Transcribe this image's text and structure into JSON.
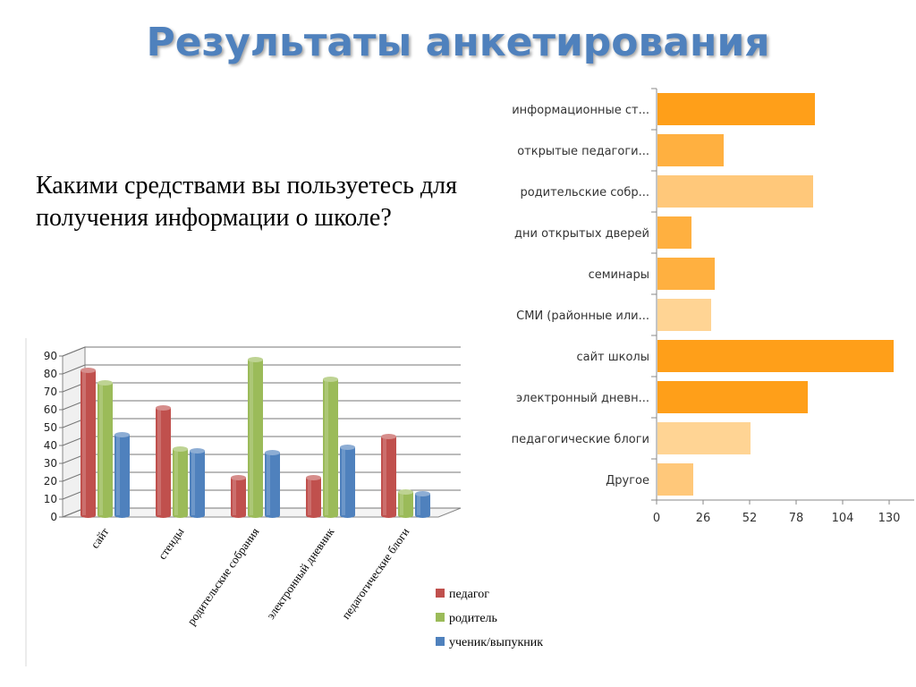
{
  "page": {
    "title": "Результаты анкетирования",
    "question": "Какими средствами вы пользуетесь для получения информации о школе?"
  },
  "chart_data": [
    {
      "type": "bar",
      "orientation": "horizontal",
      "categories": [
        "информационные ст...",
        "открытые педагоги...",
        "родительские собр...",
        "дни открытых дверей",
        "семинары",
        "СМИ (районные или...",
        "сайт школы",
        "электронный дневн...",
        "педагогические блоги",
        "Другое"
      ],
      "values": [
        88,
        37,
        87,
        19,
        32,
        30,
        132,
        84,
        52,
        20
      ],
      "colors": [
        "#ff9f19",
        "#ffb040",
        "#ffc87a",
        "#ffb040",
        "#ffb040",
        "#ffd494",
        "#ff9f19",
        "#ff9f19",
        "#ffd494",
        "#ffc87a"
      ],
      "xlim": [
        0,
        130
      ],
      "xticks": [
        0,
        26,
        52,
        78,
        104,
        130
      ]
    },
    {
      "type": "bar",
      "orientation": "vertical",
      "categories": [
        "сайт",
        "стенды",
        "родительские собрания",
        "электронный дневник",
        "педагогические блоги"
      ],
      "series": [
        {
          "name": "педагог",
          "values": [
            81,
            60,
            21,
            21,
            44
          ],
          "color": "#c0504d"
        },
        {
          "name": "родитель",
          "values": [
            74,
            37,
            87,
            76,
            13
          ],
          "color": "#9bbb59"
        },
        {
          "name": "ученик/выпукник",
          "values": [
            45,
            36,
            35,
            38,
            12
          ],
          "color": "#4f81bd"
        }
      ],
      "ylim": [
        0,
        90
      ],
      "yticks": [
        0,
        10,
        20,
        30,
        40,
        50,
        60,
        70,
        80,
        90
      ],
      "legend": "bottom-right"
    }
  ]
}
